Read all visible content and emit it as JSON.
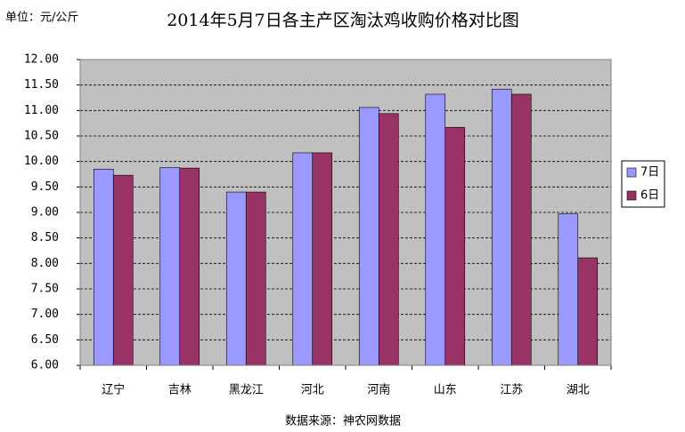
{
  "chart_data": {
    "type": "bar",
    "title": "2014年5月7日各主产区淘汰鸡收购价格对比图",
    "unit_label": "单位：元/公斤",
    "source": "数据来源：神农网数据",
    "categories": [
      "辽宁",
      "吉林",
      "黑龙江",
      "河北",
      "河南",
      "山东",
      "江苏",
      "湖北"
    ],
    "series": [
      {
        "name": "7日",
        "color": "#9999ff",
        "values": [
          9.85,
          9.88,
          9.4,
          10.17,
          11.06,
          11.32,
          11.42,
          8.97
        ]
      },
      {
        "name": "6日",
        "color": "#993366",
        "values": [
          9.73,
          9.87,
          9.4,
          10.17,
          10.94,
          10.67,
          11.32,
          8.11
        ]
      }
    ],
    "ylim": [
      6,
      12
    ],
    "yticks": [
      {
        "value": 6,
        "label": "6.00"
      },
      {
        "value": 6.5,
        "label": "6.50"
      },
      {
        "value": 7,
        "label": "7.00"
      },
      {
        "value": 7.5,
        "label": "7.50"
      },
      {
        "value": 8,
        "label": "8.00"
      },
      {
        "value": 8.5,
        "label": "8.50"
      },
      {
        "value": 9,
        "label": "9.00"
      },
      {
        "value": 9.5,
        "label": "9.50"
      },
      {
        "value": 10,
        "label": "10.00"
      },
      {
        "value": 10.5,
        "label": "10.50"
      },
      {
        "value": 11,
        "label": "11.00"
      },
      {
        "value": 11.5,
        "label": "11.50"
      },
      {
        "value": 12,
        "label": "12.00"
      }
    ],
    "grid": true,
    "plot_background": "#c0c0c0",
    "legend": "right"
  }
}
